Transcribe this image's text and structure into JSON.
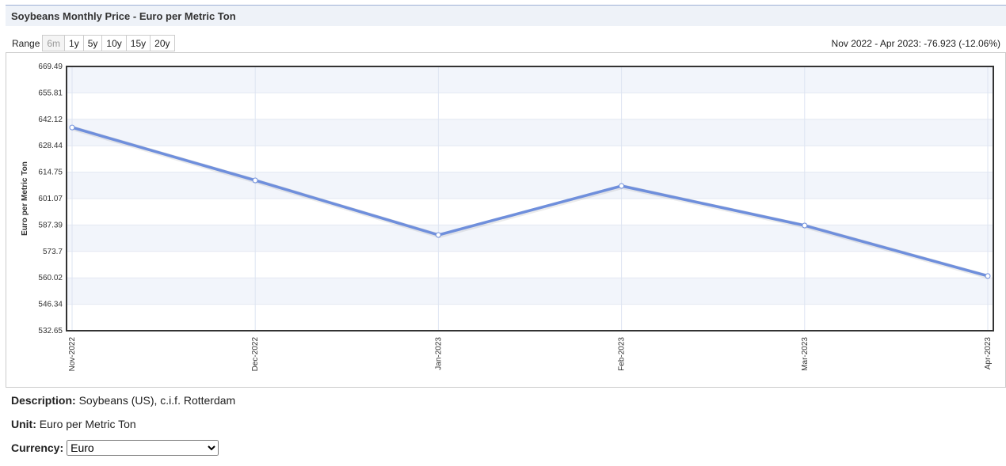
{
  "header": {
    "title": "Soybeans Monthly Price - Euro per Metric Ton"
  },
  "range": {
    "label": "Range",
    "buttons": [
      "6m",
      "1y",
      "5y",
      "10y",
      "15y",
      "20y"
    ]
  },
  "summary": "Nov 2022 - Apr 2023: -76.923 (-12.06%)",
  "chart_data": {
    "type": "line",
    "y_label": "Euro per Metric Ton",
    "categories": [
      "Nov-2022",
      "Dec-2022",
      "Jan-2023",
      "Feb-2023",
      "Mar-2023",
      "Apr-2023"
    ],
    "values": [
      637.9,
      610.5,
      582.22,
      607.62,
      587.14,
      560.977
    ],
    "color": "#6f8fdc",
    "ylim": [
      532.65,
      669.49
    ],
    "yticks": [
      532.65,
      546.34,
      560.02,
      573.7,
      587.39,
      601.07,
      614.75,
      628.44,
      642.12,
      655.81,
      669.49
    ],
    "grid": true
  },
  "info": {
    "description_label": "Description:",
    "description": "Soybeans (US), c.i.f. Rotterdam",
    "unit_label": "Unit:",
    "unit": "Euro per Metric Ton",
    "currency_label": "Currency:",
    "currency": "Euro"
  }
}
